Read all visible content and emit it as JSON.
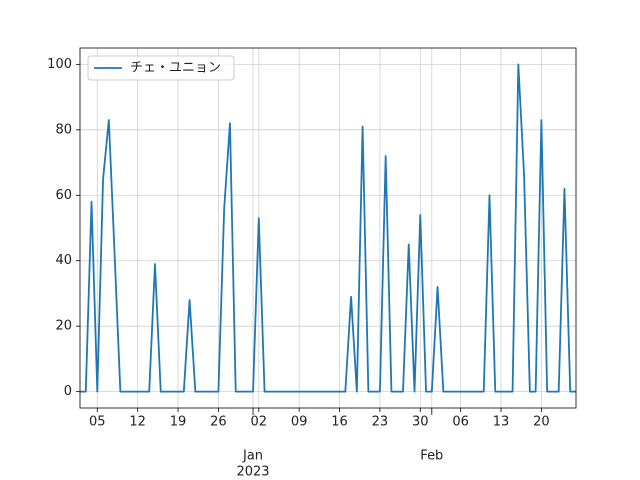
{
  "chart_data": {
    "type": "line",
    "x": [
      "2022-12-02",
      "2022-12-03",
      "2022-12-04",
      "2022-12-05",
      "2022-12-06",
      "2022-12-07",
      "2022-12-08",
      "2022-12-09",
      "2022-12-10",
      "2022-12-11",
      "2022-12-12",
      "2022-12-13",
      "2022-12-14",
      "2022-12-15",
      "2022-12-16",
      "2022-12-17",
      "2022-12-18",
      "2022-12-19",
      "2022-12-20",
      "2022-12-21",
      "2022-12-22",
      "2022-12-23",
      "2022-12-24",
      "2022-12-25",
      "2022-12-26",
      "2022-12-27",
      "2022-12-28",
      "2022-12-29",
      "2022-12-30",
      "2022-12-31",
      "2023-01-01",
      "2023-01-02",
      "2023-01-03",
      "2023-01-04",
      "2023-01-05",
      "2023-01-06",
      "2023-01-07",
      "2023-01-08",
      "2023-01-09",
      "2023-01-10",
      "2023-01-11",
      "2023-01-12",
      "2023-01-13",
      "2023-01-14",
      "2023-01-15",
      "2023-01-16",
      "2023-01-17",
      "2023-01-18",
      "2023-01-19",
      "2023-01-20",
      "2023-01-21",
      "2023-01-22",
      "2023-01-23",
      "2023-01-24",
      "2023-01-25",
      "2023-01-26",
      "2023-01-27",
      "2023-01-28",
      "2023-01-29",
      "2023-01-30",
      "2023-01-31",
      "2023-02-01",
      "2023-02-02",
      "2023-02-03",
      "2023-02-04",
      "2023-02-05",
      "2023-02-06",
      "2023-02-07",
      "2023-02-08",
      "2023-02-09",
      "2023-02-10",
      "2023-02-11",
      "2023-02-12",
      "2023-02-13",
      "2023-02-14",
      "2023-02-15",
      "2023-02-16",
      "2023-02-17",
      "2023-02-18",
      "2023-02-19",
      "2023-02-20",
      "2023-02-21",
      "2023-02-22",
      "2023-02-23",
      "2023-02-24",
      "2023-02-25",
      "2023-02-26"
    ],
    "series": [
      {
        "name": "チェ・ユニョン",
        "color": "#1f77b4",
        "values": [
          0,
          0,
          58,
          0,
          65,
          83,
          42,
          0,
          0,
          0,
          0,
          0,
          0,
          39,
          0,
          0,
          0,
          0,
          0,
          28,
          0,
          0,
          0,
          0,
          0,
          56,
          82,
          0,
          0,
          0,
          0,
          53,
          0,
          0,
          0,
          0,
          0,
          0,
          0,
          0,
          0,
          0,
          0,
          0,
          0,
          0,
          0,
          29,
          0,
          81,
          0,
          0,
          0,
          72,
          0,
          0,
          0,
          45,
          0,
          54,
          0,
          0,
          32,
          0,
          0,
          0,
          0,
          0,
          0,
          0,
          0,
          60,
          0,
          0,
          0,
          0,
          100,
          66,
          0,
          0,
          83,
          0,
          0,
          0,
          62,
          0,
          0
        ]
      }
    ],
    "xlim": [
      "2022-12-02",
      "2023-02-26"
    ],
    "xticks": [
      {
        "value": "2022-12-05",
        "label": "05"
      },
      {
        "value": "2022-12-12",
        "label": "12"
      },
      {
        "value": "2022-12-19",
        "label": "19"
      },
      {
        "value": "2022-12-26",
        "label": "26"
      },
      {
        "value": "2023-01-02",
        "label": "02"
      },
      {
        "value": "2023-01-09",
        "label": "09"
      },
      {
        "value": "2023-01-16",
        "label": "16"
      },
      {
        "value": "2023-01-23",
        "label": "23"
      },
      {
        "value": "2023-01-30",
        "label": "30"
      },
      {
        "value": "2023-02-06",
        "label": "06"
      },
      {
        "value": "2023-02-13",
        "label": "13"
      },
      {
        "value": "2023-02-20",
        "label": "20"
      }
    ],
    "month_ticks": [
      {
        "value": "2023-01-01",
        "label": "Jan",
        "year": "2023"
      },
      {
        "value": "2023-02-01",
        "label": "Feb"
      }
    ],
    "ylim": [
      -5,
      105
    ],
    "yticks": [
      0,
      20,
      40,
      60,
      80,
      100
    ],
    "grid": true,
    "legend": "upper left"
  }
}
